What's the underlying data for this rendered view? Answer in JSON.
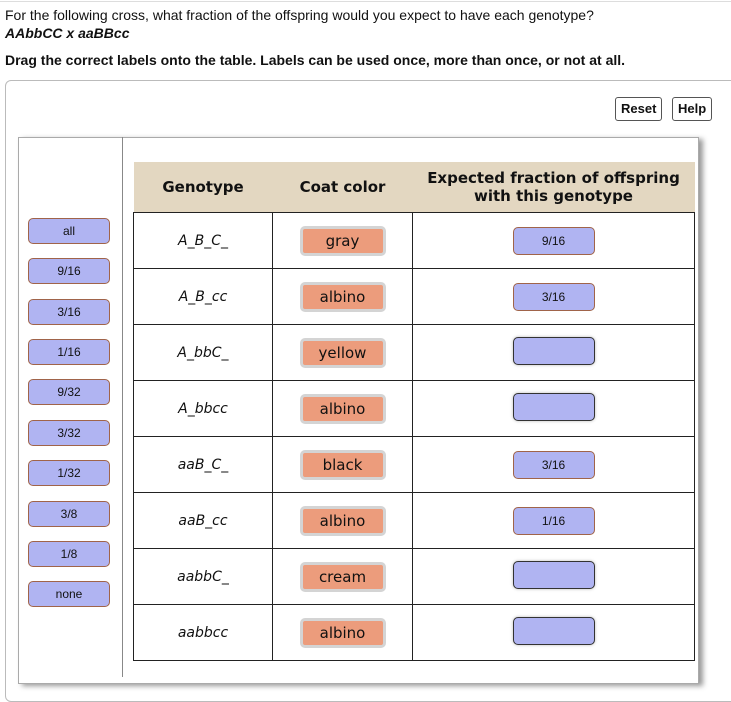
{
  "question": "For the following cross, what fraction of the offspring would you expect to have each genotype?",
  "cross": "AAbbCC x aaBBcc",
  "instructions": "Drag the correct labels onto the table. Labels can be used once, more than once, or not at all.",
  "buttons": {
    "reset": "Reset",
    "help": "Help"
  },
  "labels": [
    "all",
    "9/16",
    "3/16",
    "1/16",
    "9/32",
    "3/32",
    "1/32",
    "3/8",
    "1/8",
    "none"
  ],
  "table": {
    "headers": [
      "Genotype",
      "Coat color",
      "Expected fraction of offspring with this genotype"
    ],
    "rows": [
      {
        "genotype": "A_B_C_",
        "coat": "gray",
        "fraction": "9/16"
      },
      {
        "genotype": "A_B_cc",
        "coat": "albino",
        "fraction": "3/16"
      },
      {
        "genotype": "A_bbC_",
        "coat": "yellow",
        "fraction": ""
      },
      {
        "genotype": "A_bbcc",
        "coat": "albino",
        "fraction": ""
      },
      {
        "genotype": "aaB_C_",
        "coat": "black",
        "fraction": "3/16"
      },
      {
        "genotype": "aaB_cc",
        "coat": "albino",
        "fraction": "1/16"
      },
      {
        "genotype": "aabbC_",
        "coat": "cream",
        "fraction": ""
      },
      {
        "genotype": "aabbcc",
        "coat": "albino",
        "fraction": ""
      }
    ]
  }
}
